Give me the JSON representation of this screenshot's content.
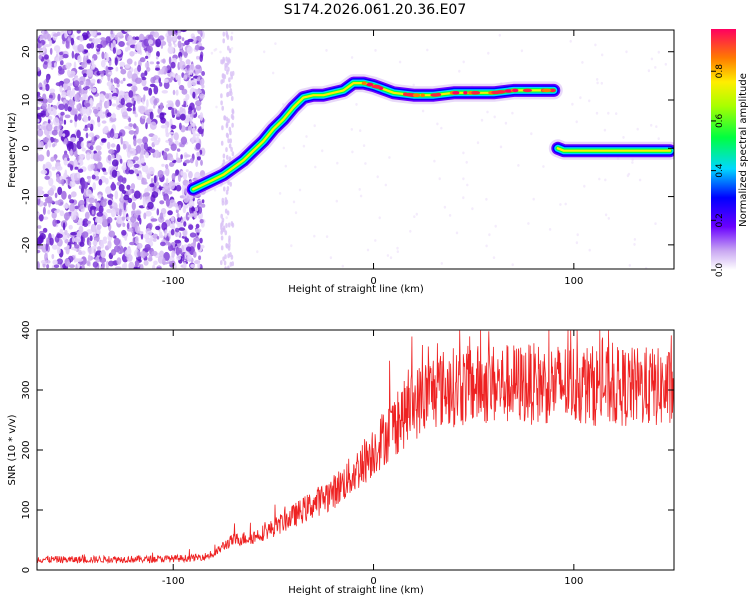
{
  "title": "S174.2026.061.20.36.E07",
  "chart_data": [
    {
      "type": "heatmap",
      "title": "S174.2026.061.20.36.E07",
      "xlabel": "Height of straight line (km)",
      "ylabel": "Frequency (Hz)",
      "xlim": [
        -168,
        150
      ],
      "ylim": [
        -25,
        24.5
      ],
      "xticks": [
        -100,
        0,
        100
      ],
      "yticks": [
        -20,
        -10,
        0,
        10,
        20
      ],
      "ridge": {
        "name": "Doppler frequency trace",
        "x": [
          -90,
          -85,
          -80,
          -75,
          -70,
          -65,
          -60,
          -55,
          -50,
          -45,
          -40,
          -35,
          -30,
          -25,
          -20,
          -15,
          -10,
          -5,
          0,
          10,
          20,
          30,
          40,
          50,
          60,
          70,
          80,
          90,
          92,
          95,
          100,
          110,
          120,
          130,
          140,
          148
        ],
        "y": [
          -8.5,
          -7.5,
          -6.5,
          -5.5,
          -4,
          -2.5,
          -0.5,
          1.5,
          4,
          6,
          8.5,
          10.5,
          11,
          11,
          11.5,
          12,
          13.5,
          13.5,
          13,
          11.5,
          11,
          11,
          11.5,
          11.5,
          11.5,
          12,
          12,
          12,
          0,
          -0.5,
          -0.5,
          -0.5,
          -0.5,
          -0.5,
          -0.5,
          -0.5
        ]
      },
      "colorbar": {
        "label": "Normalized spectral amplitude",
        "range": [
          0,
          0.97
        ],
        "ticks": [
          "0.0",
          "0.2",
          "0.4",
          "0.6",
          "0.8"
        ],
        "tick_values": [
          0,
          0.2,
          0.4,
          0.6,
          0.8
        ]
      }
    },
    {
      "type": "line",
      "xlabel": "Height of straight line (km)",
      "ylabel": "SNR (10 * v/v)",
      "xlim": [
        -168,
        150
      ],
      "ylim": [
        0,
        400
      ],
      "xticks": [
        -100,
        0,
        100
      ],
      "yticks": [
        0,
        100,
        200,
        300,
        400
      ],
      "series": [
        {
          "name": "SNR",
          "color": "#ee2222",
          "x": [
            -168,
            -150,
            -130,
            -110,
            -90,
            -80,
            -75,
            -70,
            -60,
            -50,
            -40,
            -30,
            -20,
            -10,
            0,
            10,
            20,
            30,
            40,
            60,
            80,
            100,
            120,
            140,
            150
          ],
          "y": [
            18,
            17,
            18,
            18,
            20,
            25,
            40,
            50,
            55,
            70,
            90,
            110,
            130,
            160,
            200,
            240,
            275,
            300,
            305,
            310,
            310,
            310,
            305,
            305,
            300
          ]
        }
      ]
    }
  ]
}
